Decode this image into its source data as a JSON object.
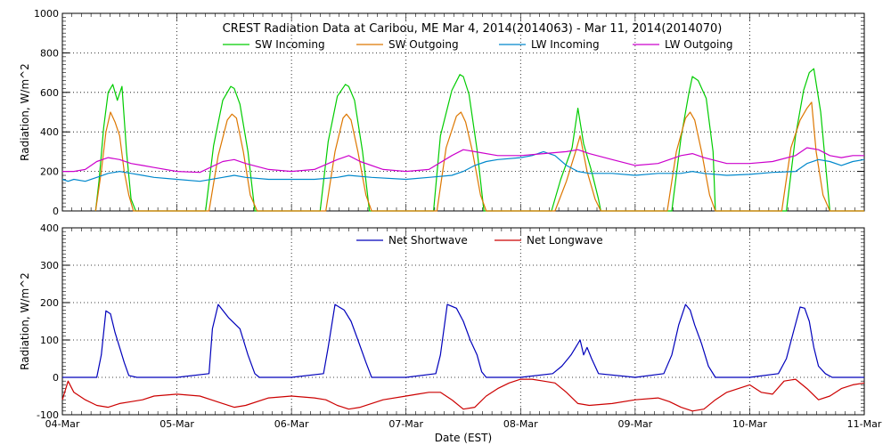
{
  "title": "CREST Radiation Data at Caribou, ME   Mar  4, 2014(2014063) - Mar 11, 2014(2014070)",
  "xlabel": "Date (EST)",
  "colors": {
    "sw_in": "#00cc00",
    "sw_out": "#dd7700",
    "lw_in": "#0088cc",
    "lw_out": "#cc00cc",
    "net_sw": "#0000bb",
    "net_lw": "#cc0000"
  },
  "chart_data": [
    {
      "type": "line",
      "ylabel": "Radiation, W/m^2",
      "ylim": [
        0,
        1000
      ],
      "yticks": [
        "0",
        "200",
        "400",
        "600",
        "800",
        "1000"
      ],
      "xlim": [
        0,
        7
      ],
      "xticks": [
        "04-Mar",
        "05-Mar",
        "06-Mar",
        "07-Mar",
        "08-Mar",
        "09-Mar",
        "10-Mar",
        "11-Mar"
      ],
      "grid": true,
      "legend_position": "top",
      "series": [
        {
          "name": "SW Incoming",
          "x": [
            0.29,
            0.32,
            0.36,
            0.4,
            0.44,
            0.48,
            0.52,
            0.56,
            0.6,
            0.64,
            0.7,
            1.0,
            1.25,
            1.32,
            1.4,
            1.47,
            1.5,
            1.55,
            1.62,
            1.68,
            1.7,
            2.0,
            2.25,
            2.32,
            2.4,
            2.47,
            2.5,
            2.55,
            2.62,
            2.68,
            2.7,
            3.0,
            3.24,
            3.3,
            3.4,
            3.47,
            3.5,
            3.55,
            3.62,
            3.68,
            3.7,
            4.0,
            4.27,
            4.35,
            4.45,
            4.5,
            4.55,
            4.62,
            4.68,
            4.7,
            5.0,
            5.25,
            5.32,
            5.4,
            5.47,
            5.5,
            5.55,
            5.62,
            5.68,
            5.7,
            6.0,
            6.25,
            6.32,
            6.4,
            6.47,
            6.52,
            6.56,
            6.62,
            6.68,
            6.7,
            7.0
          ],
          "y": [
            0,
            150,
            420,
            600,
            640,
            560,
            630,
            300,
            60,
            0,
            0,
            0,
            0,
            330,
            560,
            630,
            620,
            540,
            300,
            0,
            0,
            0,
            0,
            350,
            580,
            640,
            630,
            560,
            300,
            0,
            0,
            0,
            0,
            380,
            610,
            690,
            680,
            590,
            310,
            0,
            0,
            0,
            0,
            160,
            320,
            520,
            340,
            200,
            60,
            0,
            0,
            0,
            0,
            370,
            600,
            680,
            660,
            570,
            300,
            0,
            0,
            0,
            0,
            380,
            610,
            700,
            720,
            500,
            120,
            0,
            0
          ]
        },
        {
          "name": "SW Outgoing",
          "x": [
            0.29,
            0.34,
            0.38,
            0.42,
            0.46,
            0.5,
            0.54,
            0.58,
            0.62,
            0.7,
            1.0,
            1.28,
            1.36,
            1.44,
            1.48,
            1.52,
            1.58,
            1.64,
            1.7,
            2.0,
            2.3,
            2.38,
            2.45,
            2.48,
            2.52,
            2.58,
            2.65,
            2.7,
            3.0,
            3.27,
            3.35,
            3.44,
            3.48,
            3.52,
            3.58,
            3.65,
            3.7,
            4.0,
            4.3,
            4.4,
            4.48,
            4.52,
            4.58,
            4.65,
            4.7,
            5.0,
            5.28,
            5.36,
            5.44,
            5.48,
            5.52,
            5.58,
            5.65,
            5.7,
            6.0,
            6.28,
            6.36,
            6.44,
            6.5,
            6.54,
            6.58,
            6.64,
            6.7,
            7.0
          ],
          "y": [
            0,
            200,
            400,
            500,
            450,
            380,
            200,
            80,
            0,
            0,
            0,
            0,
            280,
            460,
            490,
            470,
            300,
            80,
            0,
            0,
            0,
            300,
            470,
            490,
            460,
            300,
            80,
            0,
            0,
            0,
            320,
            480,
            500,
            450,
            300,
            80,
            0,
            0,
            0,
            150,
            300,
            380,
            200,
            60,
            0,
            0,
            0,
            300,
            470,
            500,
            460,
            300,
            80,
            0,
            0,
            0,
            320,
            460,
            520,
            550,
            300,
            80,
            0,
            0
          ]
        },
        {
          "name": "LW Incoming",
          "x": [
            0,
            0.05,
            0.1,
            0.2,
            0.3,
            0.4,
            0.5,
            0.6,
            0.7,
            0.8,
            1.0,
            1.2,
            1.4,
            1.5,
            1.6,
            1.8,
            2.0,
            2.2,
            2.4,
            2.5,
            2.7,
            3.0,
            3.2,
            3.4,
            3.5,
            3.6,
            3.7,
            3.8,
            4.0,
            4.1,
            4.2,
            4.3,
            4.4,
            4.5,
            4.6,
            4.8,
            5.0,
            5.2,
            5.4,
            5.5,
            5.6,
            5.8,
            6.0,
            6.2,
            6.4,
            6.5,
            6.6,
            6.7,
            6.8,
            6.9,
            7.0
          ],
          "y": [
            160,
            150,
            160,
            150,
            170,
            190,
            200,
            190,
            180,
            170,
            160,
            150,
            170,
            180,
            170,
            160,
            160,
            160,
            170,
            180,
            170,
            160,
            170,
            180,
            200,
            230,
            250,
            260,
            270,
            280,
            300,
            280,
            230,
            200,
            190,
            190,
            180,
            190,
            190,
            200,
            190,
            180,
            185,
            195,
            200,
            240,
            260,
            250,
            230,
            250,
            260
          ]
        },
        {
          "name": "LW Outgoing",
          "x": [
            0,
            0.1,
            0.2,
            0.3,
            0.4,
            0.5,
            0.6,
            0.7,
            0.8,
            1.0,
            1.2,
            1.4,
            1.5,
            1.6,
            1.8,
            2.0,
            2.2,
            2.4,
            2.5,
            2.6,
            2.8,
            3.0,
            3.2,
            3.4,
            3.5,
            3.6,
            3.8,
            4.0,
            4.2,
            4.4,
            4.5,
            4.6,
            4.8,
            5.0,
            5.2,
            5.4,
            5.5,
            5.6,
            5.8,
            6.0,
            6.2,
            6.4,
            6.5,
            6.6,
            6.7,
            6.8,
            6.9,
            7.0
          ],
          "y": [
            200,
            200,
            210,
            250,
            270,
            260,
            240,
            230,
            220,
            200,
            195,
            250,
            260,
            240,
            210,
            200,
            210,
            260,
            280,
            250,
            210,
            200,
            210,
            280,
            310,
            300,
            280,
            280,
            290,
            300,
            310,
            290,
            260,
            230,
            240,
            280,
            290,
            270,
            240,
            240,
            250,
            280,
            320,
            310,
            280,
            270,
            280,
            280
          ]
        }
      ]
    },
    {
      "type": "line",
      "ylabel": "Radiation, W/m^2",
      "ylim": [
        -100,
        400
      ],
      "yticks": [
        "-100",
        "0",
        "100",
        "200",
        "300",
        "400"
      ],
      "xlim": [
        0,
        7
      ],
      "xticks": [
        "04-Mar",
        "05-Mar",
        "06-Mar",
        "07-Mar",
        "08-Mar",
        "09-Mar",
        "10-Mar",
        "11-Mar"
      ],
      "grid": true,
      "legend_position": "top",
      "series": [
        {
          "name": "Net Shortwave",
          "x": [
            0,
            0.3,
            0.34,
            0.38,
            0.42,
            0.46,
            0.5,
            0.54,
            0.58,
            0.65,
            1.0,
            1.28,
            1.31,
            1.36,
            1.45,
            1.55,
            1.62,
            1.68,
            1.72,
            2.0,
            2.28,
            2.32,
            2.38,
            2.46,
            2.52,
            2.58,
            2.65,
            2.7,
            3.0,
            3.26,
            3.3,
            3.36,
            3.44,
            3.5,
            3.56,
            3.62,
            3.66,
            3.7,
            4.0,
            4.28,
            4.36,
            4.44,
            4.48,
            4.52,
            4.55,
            4.58,
            4.62,
            4.68,
            5.0,
            5.25,
            5.32,
            5.38,
            5.44,
            5.48,
            5.52,
            5.58,
            5.64,
            5.7,
            6.0,
            6.25,
            6.32,
            6.38,
            6.44,
            6.48,
            6.52,
            6.56,
            6.6,
            6.66,
            6.72,
            7.0
          ],
          "y": [
            0,
            0,
            60,
            178,
            170,
            120,
            80,
            40,
            5,
            0,
            0,
            10,
            130,
            195,
            160,
            130,
            60,
            10,
            0,
            0,
            10,
            80,
            195,
            180,
            150,
            100,
            40,
            0,
            0,
            10,
            60,
            195,
            185,
            150,
            100,
            60,
            15,
            0,
            0,
            10,
            30,
            60,
            80,
            100,
            60,
            80,
            50,
            10,
            0,
            10,
            60,
            140,
            195,
            180,
            140,
            90,
            30,
            0,
            0,
            10,
            50,
            120,
            188,
            185,
            150,
            80,
            30,
            10,
            0,
            0
          ]
        },
        {
          "name": "Net Longwave",
          "x": [
            0,
            0.05,
            0.1,
            0.2,
            0.3,
            0.4,
            0.5,
            0.6,
            0.7,
            0.8,
            1.0,
            1.2,
            1.3,
            1.4,
            1.5,
            1.6,
            1.8,
            2.0,
            2.2,
            2.3,
            2.4,
            2.5,
            2.6,
            2.8,
            3.0,
            3.1,
            3.2,
            3.3,
            3.4,
            3.5,
            3.6,
            3.7,
            3.8,
            3.9,
            4.0,
            4.1,
            4.2,
            4.3,
            4.4,
            4.5,
            4.6,
            4.8,
            5.0,
            5.2,
            5.3,
            5.4,
            5.5,
            5.6,
            5.7,
            5.8,
            6.0,
            6.1,
            6.2,
            6.3,
            6.4,
            6.5,
            6.6,
            6.7,
            6.8,
            6.9,
            7.0
          ],
          "y": [
            -60,
            -10,
            -40,
            -60,
            -75,
            -80,
            -70,
            -65,
            -60,
            -50,
            -45,
            -50,
            -60,
            -70,
            -80,
            -75,
            -55,
            -50,
            -55,
            -60,
            -75,
            -85,
            -80,
            -60,
            -50,
            -45,
            -40,
            -40,
            -60,
            -85,
            -80,
            -50,
            -30,
            -15,
            -5,
            -5,
            -10,
            -15,
            -40,
            -70,
            -75,
            -70,
            -60,
            -55,
            -65,
            -80,
            -90,
            -85,
            -60,
            -40,
            -20,
            -40,
            -45,
            -10,
            -5,
            -30,
            -60,
            -50,
            -30,
            -20,
            -15
          ]
        }
      ]
    }
  ]
}
